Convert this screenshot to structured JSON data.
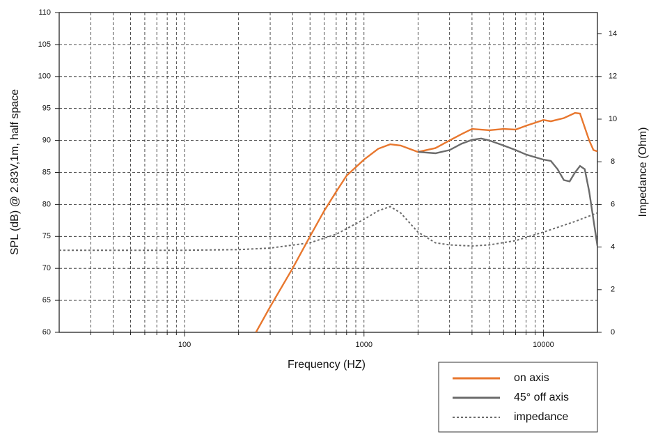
{
  "chart_data": {
    "type": "line",
    "x_label": "Frequency (HZ)",
    "y_label": "SPL (dB) @ 2.83V,1m, half space",
    "y2_label": "Impedance (Ohm)",
    "x_scale": "log",
    "xlim": [
      20,
      20000
    ],
    "xticks": [
      100,
      1000,
      10000
    ],
    "xminorticks": [
      30,
      40,
      50,
      60,
      70,
      80,
      90,
      200,
      300,
      400,
      500,
      600,
      700,
      800,
      900,
      2000,
      3000,
      4000,
      5000,
      6000,
      7000,
      8000,
      9000
    ],
    "ylim": [
      60,
      110
    ],
    "yticks": [
      60,
      65,
      70,
      75,
      80,
      85,
      90,
      95,
      100,
      105,
      110
    ],
    "y2lim": [
      0,
      15
    ],
    "y2ticks": [
      0,
      2,
      4,
      6,
      8,
      10,
      12,
      14
    ],
    "grid": true,
    "legend": "lower right",
    "series": [
      {
        "name": "on axis",
        "color": "#e8772e",
        "style": "solid",
        "x": [
          250,
          300,
          400,
          500,
          600,
          700,
          800,
          1000,
          1200,
          1400,
          1600,
          2000,
          2500,
          3000,
          3500,
          4000,
          5000,
          6000,
          7000,
          8000,
          10000,
          11000,
          13000,
          15000,
          16000,
          18000,
          19000,
          20000
        ],
        "values": [
          60,
          64,
          70,
          75,
          79,
          82,
          84.5,
          87,
          88.7,
          89.4,
          89.2,
          88.2,
          88.8,
          90,
          91,
          91.8,
          91.6,
          91.8,
          91.7,
          92.3,
          93.2,
          93,
          93.5,
          94.3,
          94.2,
          90,
          88.5,
          88.3
        ]
      },
      {
        "name": "45° off axis",
        "color": "#6b6b6b",
        "style": "solid",
        "x": [
          2000,
          2500,
          3000,
          3500,
          4000,
          4500,
          5000,
          6000,
          7000,
          8000,
          10000,
          11000,
          12000,
          13000,
          14000,
          15000,
          16000,
          17000,
          18000,
          20000
        ],
        "values": [
          88.2,
          88,
          88.5,
          89.5,
          90.1,
          90.3,
          90,
          89.2,
          88.5,
          87.8,
          87,
          86.8,
          85.5,
          83.8,
          83.6,
          85,
          86,
          85.5,
          82,
          73.5
        ]
      },
      {
        "name": "impedance",
        "color": "#6b6b6b",
        "style": "dotted",
        "axis": "y2",
        "x": [
          20,
          50,
          100,
          200,
          300,
          500,
          700,
          1000,
          1200,
          1400,
          1600,
          2000,
          2500,
          3000,
          4000,
          5000,
          7000,
          10000,
          15000,
          20000
        ],
        "values": [
          3.85,
          3.85,
          3.85,
          3.88,
          3.95,
          4.2,
          4.6,
          5.3,
          5.7,
          5.9,
          5.6,
          4.7,
          4.2,
          4.1,
          4.05,
          4.1,
          4.3,
          4.7,
          5.2,
          5.6
        ]
      }
    ]
  }
}
